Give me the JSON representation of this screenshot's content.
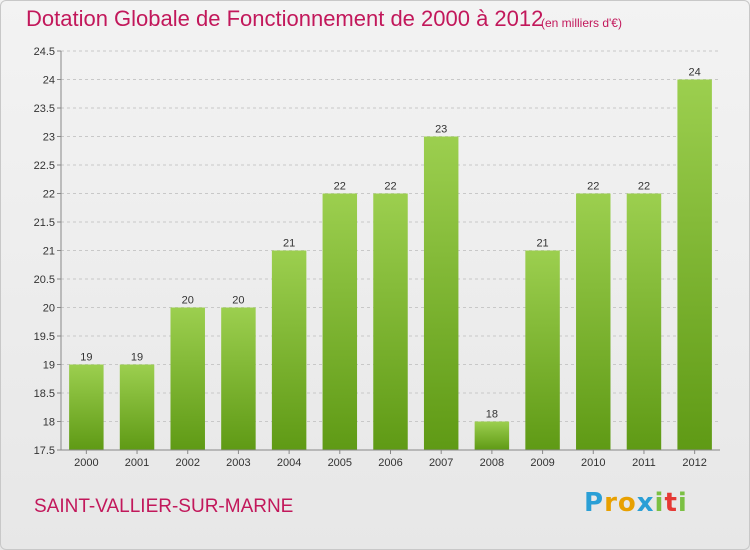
{
  "header": {
    "title": "Dotation Globale de Fonctionnement de 2000 à 2012",
    "subtitle": "(en milliers d'€)"
  },
  "footer": {
    "commune": "SAINT-VALLIER-SUR-MARNE",
    "logo_text": "Proxiti"
  },
  "colors": {
    "title": "#c2185b",
    "bar_top": "#9ccf4f",
    "bar_bottom": "#5f9a15",
    "axis": "#888888",
    "grid": "#c8c8c8"
  },
  "chart_data": {
    "type": "bar",
    "title": "Dotation Globale de Fonctionnement de 2000 à 2012",
    "subtitle": "(en milliers d'€)",
    "xlabel": "",
    "ylabel": "",
    "categories": [
      "2000",
      "2001",
      "2002",
      "2003",
      "2004",
      "2005",
      "2006",
      "2007",
      "2008",
      "2009",
      "2010",
      "2011",
      "2012"
    ],
    "values": [
      19,
      19,
      20,
      20,
      21,
      22,
      22,
      23,
      18,
      21,
      22,
      22,
      24
    ],
    "ylim": [
      17.5,
      24.5
    ],
    "yticks": [
      17.5,
      18,
      18.5,
      19,
      19.5,
      20,
      20.5,
      21,
      21.5,
      22,
      22.5,
      23,
      23.5,
      24,
      24.5
    ],
    "grid": true,
    "legend": "none"
  }
}
